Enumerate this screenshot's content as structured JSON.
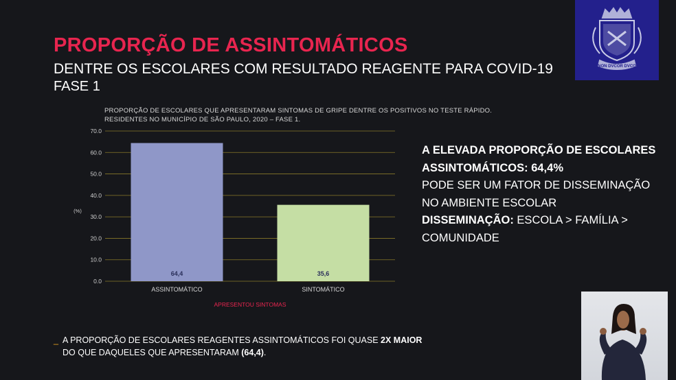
{
  "header": {
    "title": "PROPORÇÃO DE ASSINTOMÁTICOS",
    "subtitle": "DENTRE OS ESCOLARES COM RESULTADO REAGENTE PARA COVID-19",
    "phase": "FASE 1"
  },
  "logo": {
    "icon": "city-coat-of-arms-icon",
    "motto": "NON DVCOR DVCO",
    "background": "#23208c"
  },
  "chart_data": {
    "type": "bar",
    "caption_line1": "PROPORÇÃO DE ESCOLARES QUE APRESENTARAM SINTOMAS DE GRIPE DENTRE OS POSITIVOS NO TESTE RÁPIDO.",
    "caption_line2": "RESIDENTES NO MUNICÍPIO DE SÃO PAULO, 2020 – FASE 1.",
    "categories": [
      "ASSINTOMÁTICO",
      "SINTOMÁTICO"
    ],
    "values": [
      64.4,
      35.6
    ],
    "value_labels": [
      "64,4",
      "35,6"
    ],
    "colors": [
      "#8f97c8",
      "#c5dea4"
    ],
    "xlabel": "APRESENTOU SINTOMAS",
    "ylabel": "(%)",
    "ylim": [
      0,
      70
    ],
    "yticks": [
      "0.0",
      "10.0",
      "20.0",
      "30.0",
      "40.0",
      "50.0",
      "60.0",
      "70.0"
    ],
    "grid": true,
    "xlabel_color": "#e8254f"
  },
  "side": {
    "line1": "A ELEVADA PROPORÇÃO DE ESCOLARES",
    "line2": "ASSINTOMÁTICOS: 64,4%",
    "line3": "PODE SER UM FATOR DE DISSEMINAÇÃO",
    "line4": "NO AMBIENTE ESCOLAR",
    "line5_bold": "DISSEMINAÇÃO:",
    "line5_rest": " ESCOLA > FAMÍLIA > COMUNIDADE"
  },
  "footnote": {
    "dash": "_",
    "line1_a": "A PROPORÇÃO DE ESCOLARES REAGENTES ASSINTOMÁTICOS FOI QUASE ",
    "line1_b": "2X MAIOR",
    "line2_a": "DO QUE DAQUELES QUE APRESENTARAM ",
    "line2_b": "(64,4)",
    "line2_c": "."
  },
  "colors": {
    "accent": "#e8254f",
    "background": "#16171b"
  }
}
